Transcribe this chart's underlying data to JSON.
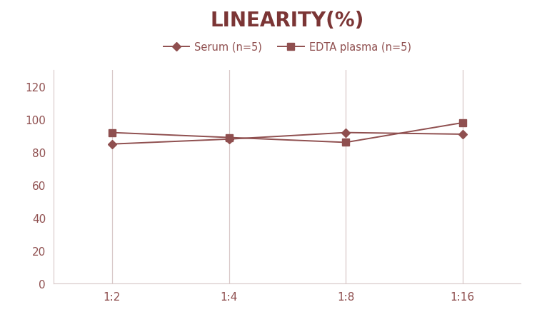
{
  "title": "LINEARITY(%)",
  "title_fontsize": 20,
  "title_fontweight": "bold",
  "title_color": "#7b3535",
  "x_labels": [
    "1:2",
    "1:4",
    "1:8",
    "1:16"
  ],
  "x_values": [
    0,
    1,
    2,
    3
  ],
  "serum_values": [
    85,
    88,
    92,
    91
  ],
  "edta_values": [
    92,
    89,
    86,
    98
  ],
  "serum_label": "Serum (n=5)",
  "edta_label": "EDTA plasma (n=5)",
  "line_color": "#8f4f4f",
  "ylim": [
    0,
    130
  ],
  "yticks": [
    0,
    20,
    40,
    60,
    80,
    100,
    120
  ],
  "background_color": "#ffffff",
  "plot_bg_color": "#ffffff",
  "grid_color": "#d8c8c8",
  "tick_color": "#8f4f4f",
  "legend_fontsize": 10.5,
  "axis_fontsize": 11
}
